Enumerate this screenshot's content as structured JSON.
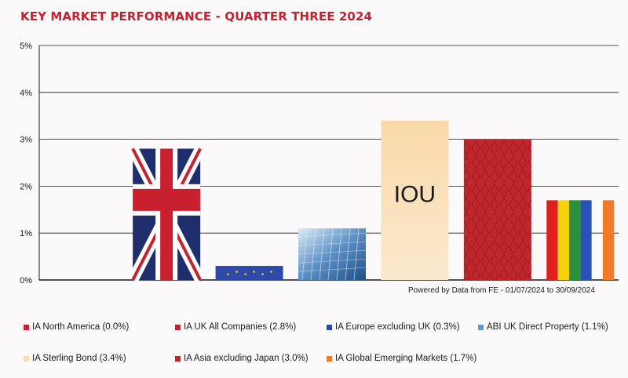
{
  "chart_data": {
    "type": "bar",
    "title": "KEY MARKET PERFORMANCE - QUARTER THREE 2024",
    "xlabel": "",
    "ylabel": "",
    "ylim": [
      0,
      5
    ],
    "yticks": [
      "0%",
      "1%",
      "2%",
      "3%",
      "4%",
      "5%"
    ],
    "grid": true,
    "legend_position": "bottom",
    "source_note": "Powered by Data from FE - 01/07/2024 to 30/09/2024",
    "bar_text": "IOU",
    "categories": [
      "IA North America (0.0%)",
      "IA UK All Companies (2.8%)",
      "IA Europe excluding UK (0.3%)",
      "ABI UK Direct Property (1.1%)",
      "IA Sterling Bond (3.4%)",
      "IA Asia excluding Japan (3.0%)",
      "IA Global Emerging Markets (1.7%)"
    ],
    "values": [
      0.0,
      2.8,
      0.3,
      1.1,
      3.4,
      3.0,
      1.7
    ],
    "colors": [
      "#c8202f",
      "#c8202f",
      "#2e4aa8",
      "#5b9bd5",
      "#f7ddb0",
      "#c0272d",
      "#ef7a29"
    ]
  }
}
